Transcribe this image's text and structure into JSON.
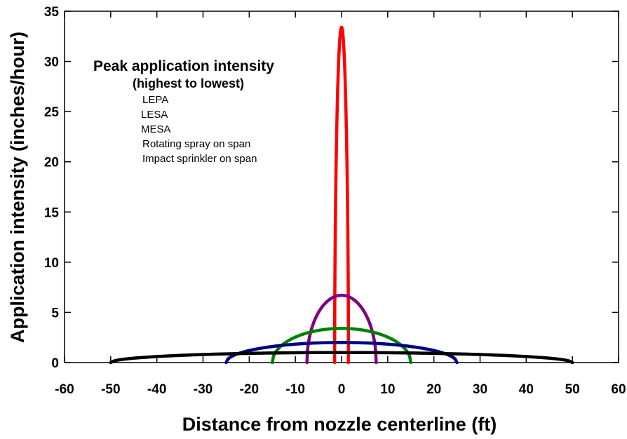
{
  "chart_data": {
    "type": "line",
    "title": "",
    "xlabel": "Distance from nozzle centerline (ft)",
    "ylabel": "Application intensity (inches/hour)",
    "xlim": [
      -60,
      60
    ],
    "ylim": [
      0,
      35
    ],
    "xticks": [
      -60,
      -50,
      -40,
      -30,
      -20,
      -10,
      0,
      10,
      20,
      30,
      40,
      50,
      60
    ],
    "yticks": [
      0,
      5,
      10,
      15,
      20,
      25,
      30,
      35
    ],
    "grid": false,
    "legend": {
      "title": "Peak application intensity",
      "subtitle": "(highest to lowest)",
      "position": "top-left",
      "items": [
        "LEPA",
        "LESA",
        "MESA",
        "Rotating spray on span",
        "Impact sprinkler on span"
      ]
    },
    "series": [
      {
        "color": "#ff0000",
        "peak": 33.4,
        "x_extent": [
          -1.5,
          1.5
        ],
        "shape": "narrow-peak"
      },
      {
        "color": "#800080",
        "peak": 6.7,
        "x_extent": [
          -7.5,
          7.5
        ],
        "shape": "ellipse"
      },
      {
        "color": "#008000",
        "peak": 3.4,
        "x_extent": [
          -15,
          15
        ],
        "shape": "ellipse"
      },
      {
        "color": "#000080",
        "peak": 2.0,
        "x_extent": [
          -25,
          25
        ],
        "shape": "ellipse"
      },
      {
        "color": "#000000",
        "peak": 1.0,
        "x_extent": [
          -50,
          50
        ],
        "shape": "ellipse"
      }
    ]
  }
}
